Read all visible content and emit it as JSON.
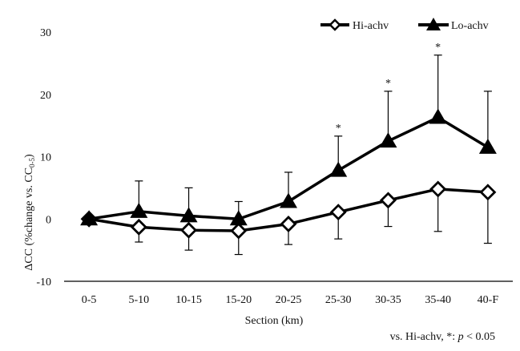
{
  "chart_data": {
    "type": "line",
    "title": "",
    "xlabel": "Section (km)",
    "ylabel": "ΔCC (%change vs. CC",
    "ylabel_sub": "0-5",
    "ylabel_close": ")",
    "ylim": [
      -10,
      30
    ],
    "yticks": [
      -10,
      0,
      10,
      20,
      30
    ],
    "ytick_labels": [
      "-10",
      "0",
      "10",
      "20",
      "30"
    ],
    "categories": [
      "0-5",
      "5-10",
      "10-15",
      "15-20",
      "20-25",
      "25-30",
      "30-35",
      "35-40",
      "40-F"
    ],
    "series": [
      {
        "name": "Hi-achv",
        "marker": "diamond-open",
        "values": [
          0,
          -1.3,
          -1.8,
          -1.9,
          -0.8,
          1.1,
          3.0,
          4.8,
          4.3
        ],
        "error_down": [
          null,
          2.4,
          3.2,
          3.8,
          3.3,
          4.3,
          4.2,
          6.8,
          8.2
        ],
        "error_up": [
          null,
          null,
          null,
          null,
          null,
          null,
          null,
          null,
          null
        ]
      },
      {
        "name": "Lo-achv",
        "marker": "triangle-filled",
        "values": [
          0,
          1.2,
          0.5,
          0,
          2.8,
          7.8,
          12.5,
          16.3,
          11.5
        ],
        "error_down": [
          null,
          null,
          null,
          null,
          null,
          null,
          null,
          null,
          null
        ],
        "error_up": [
          null,
          4.9,
          4.5,
          2.8,
          4.7,
          5.5,
          8.0,
          10.0,
          9.0
        ]
      }
    ],
    "significance": [
      {
        "category": "25-30",
        "label": "*"
      },
      {
        "category": "30-35",
        "label": "*"
      },
      {
        "category": "35-40",
        "label": "*"
      }
    ],
    "legend": {
      "position": "top-right",
      "entries": [
        "Hi-achv",
        "Lo-achv"
      ]
    },
    "note": {
      "prefix": "vs. Hi-achv, *: ",
      "p": "p",
      "suffix": " < 0.05"
    }
  }
}
